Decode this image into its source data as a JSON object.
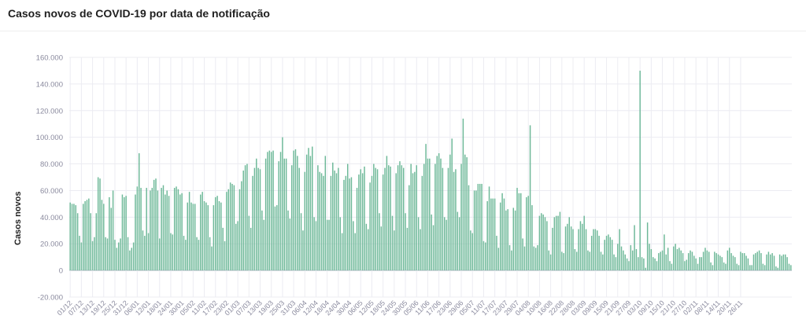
{
  "header": {
    "title": "Casos novos de COVID-19 por data de notificação"
  },
  "chart_data": {
    "type": "bar",
    "title": "Casos novos de COVID-19 por data de notificação",
    "xlabel": "",
    "ylabel": "Casos novos",
    "ylim": [
      -20000,
      160000
    ],
    "y_ticks": [
      -20000,
      0,
      20000,
      40000,
      60000,
      80000,
      100000,
      120000,
      140000,
      160000
    ],
    "y_tick_labels": [
      "-20.000",
      "0",
      "20.000",
      "40.000",
      "60.000",
      "80.000",
      "100.000",
      "120.000",
      "140.000",
      "160.000"
    ],
    "x_start": "01/12",
    "x_tick_labels": [
      "01/12",
      "07/12",
      "13/12",
      "19/12",
      "25/12",
      "31/12",
      "06/01",
      "12/01",
      "18/01",
      "24/01",
      "30/01",
      "05/02",
      "11/02",
      "17/02",
      "23/02",
      "01/03",
      "07/03",
      "13/03",
      "19/03",
      "25/03",
      "31/03",
      "06/04",
      "12/04",
      "18/04",
      "24/04",
      "30/04",
      "06/05",
      "12/05",
      "18/05",
      "24/05",
      "30/05",
      "05/06",
      "11/06",
      "17/06",
      "23/06",
      "29/06",
      "05/07",
      "11/07",
      "17/07",
      "23/07",
      "29/07",
      "04/08",
      "10/08",
      "16/08",
      "22/08",
      "28/08",
      "03/09",
      "09/09",
      "15/09",
      "21/09",
      "27/09",
      "03/10",
      "09/10",
      "15/10",
      "21/10",
      "27/10",
      "02/11",
      "08/11",
      "14/11",
      "20/11",
      "26/11"
    ],
    "x_tick_every_days": 6,
    "grid": true,
    "colors": {
      "bar": "#6db898",
      "bar_stroke": "#4f9f7f",
      "grid": "#ececf2",
      "zero_line": "#bdbdcc"
    },
    "series": [
      {
        "values": [
          51000,
          50000,
          50000,
          49000,
          43000,
          26000,
          21000,
          50000,
          52000,
          53000,
          54000,
          43000,
          22000,
          25000,
          43000,
          70000,
          69000,
          53000,
          50000,
          25000,
          24000,
          55000,
          47000,
          60000,
          23000,
          17000,
          21000,
          24000,
          57000,
          55000,
          56000,
          25000,
          15000,
          17000,
          21000,
          57000,
          63000,
          88000,
          62000,
          30000,
          26000,
          62000,
          28000,
          60000,
          62000,
          68000,
          69000,
          60000,
          24000,
          62000,
          64000,
          57000,
          60000,
          56000,
          28000,
          27000,
          62000,
          63000,
          61000,
          57000,
          58000,
          26000,
          23000,
          51000,
          59000,
          51000,
          50000,
          50000,
          25000,
          23000,
          57000,
          59000,
          52000,
          51000,
          49000,
          25000,
          18000,
          49000,
          55000,
          56000,
          52000,
          51000,
          32000,
          22000,
          59000,
          61000,
          66000,
          65000,
          64000,
          35000,
          37000,
          61000,
          67000,
          75000,
          79000,
          80000,
          41000,
          32000,
          71000,
          77000,
          84000,
          77000,
          76000,
          45000,
          38000,
          84000,
          89000,
          90000,
          89000,
          90000,
          48000,
          49000,
          82000,
          89000,
          100000,
          84000,
          84000,
          45000,
          39000,
          79000,
          90000,
          91000,
          86000,
          77000,
          43000,
          30000,
          74000,
          87000,
          92000,
          86000,
          93000,
          40000,
          37000,
          79000,
          74000,
          73000,
          71000,
          86000,
          38000,
          38000,
          71000,
          81000,
          75000,
          73000,
          77000,
          40000,
          28000,
          68000,
          71000,
          80000,
          69000,
          70000,
          37000,
          28000,
          62000,
          72000,
          76000,
          73000,
          78000,
          35000,
          31000,
          66000,
          71000,
          80000,
          77000,
          76000,
          43000,
          33000,
          72000,
          77000,
          86000,
          79000,
          78000,
          41000,
          30000,
          73000,
          79000,
          82000,
          79000,
          77000,
          43000,
          32000,
          64000,
          80000,
          73000,
          74000,
          79000,
          40000,
          31000,
          71000,
          80000,
          95000,
          84000,
          84000,
          42000,
          34000,
          80000,
          86000,
          88000,
          84000,
          77000,
          40000,
          38000,
          77000,
          87000,
          99000,
          74000,
          76000,
          44000,
          40000,
          80000,
          114000,
          87000,
          85000,
          64000,
          30000,
          28000,
          60000,
          60000,
          65000,
          65000,
          65000,
          22000,
          21000,
          52000,
          63000,
          54000,
          54000,
          54000,
          26000,
          17000,
          51000,
          58000,
          54000,
          45000,
          46000,
          19000,
          15000,
          47000,
          45000,
          62000,
          58000,
          58000,
          24000,
          18000,
          55000,
          56000,
          109000,
          49000,
          18000,
          17000,
          19000,
          41000,
          43000,
          42000,
          40000,
          37000,
          15000,
          12000,
          32000,
          40000,
          41000,
          41000,
          44000,
          14000,
          13000,
          33000,
          35000,
          40000,
          33000,
          31000,
          16000,
          14000,
          31000,
          37000,
          35000,
          41000,
          31000,
          15000,
          14000,
          26000,
          31000,
          31000,
          30000,
          26000,
          14000,
          12000,
          23000,
          26000,
          27000,
          25000,
          23000,
          12000,
          10000,
          20000,
          31000,
          18000,
          15000,
          12000,
          9000,
          7000,
          19000,
          15000,
          34000,
          16000,
          10000,
          150000,
          10000,
          9000,
          2000,
          36000,
          20000,
          16000,
          10000,
          9000,
          7000,
          13000,
          14000,
          15000,
          27000,
          12000,
          17000,
          7000,
          5000,
          18000,
          20000,
          16000,
          17000,
          15000,
          13000,
          7000,
          8000,
          13000,
          15000,
          14000,
          11000,
          9000,
          5000,
          10000,
          10000,
          14000,
          17000,
          15000,
          14000,
          6000,
          4000,
          14000,
          13000,
          12000,
          11000,
          10000,
          6000,
          5000,
          15000,
          17000,
          13000,
          11000,
          10000,
          5000,
          4000,
          14000,
          13000,
          13000,
          11000,
          9000,
          4000,
          4000,
          12000,
          13000,
          14000,
          15000,
          13000,
          5000,
          4000,
          12000,
          14000,
          12000,
          13000,
          11000,
          3000,
          2000,
          12000,
          11000,
          12000,
          12000,
          10000,
          5000,
          4000
        ]
      }
    ]
  }
}
